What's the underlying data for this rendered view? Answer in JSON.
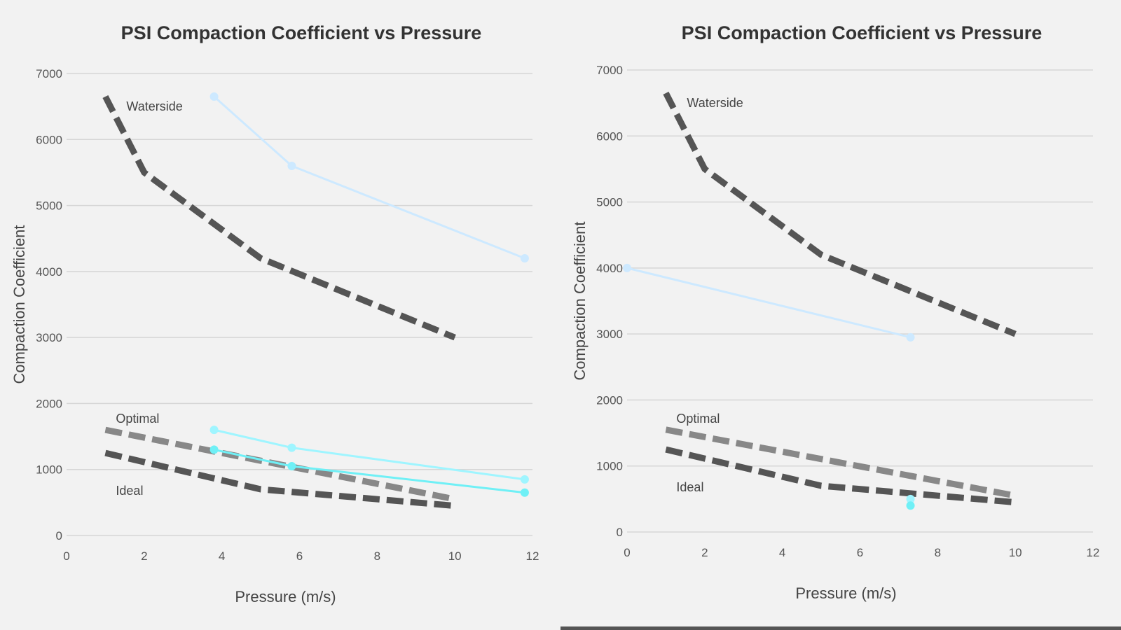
{
  "chart_data": [
    {
      "type": "line",
      "title": "PSI Compaction Coefficient vs Pressure",
      "xlabel": "Pressure (m/s)",
      "ylabel": "Compaction Coefficient",
      "xlim": [
        0,
        12
      ],
      "ylim": [
        0,
        7000
      ],
      "xticks": [
        0,
        2,
        4,
        6,
        8,
        10,
        12
      ],
      "yticks": [
        0,
        1000,
        2000,
        3000,
        4000,
        5000,
        6000,
        7000
      ],
      "grid": true,
      "series": [
        {
          "name": "Waterside",
          "style": "dashed",
          "color": "#555555",
          "x": [
            1,
            2,
            5,
            10
          ],
          "y": [
            6650,
            5500,
            4200,
            3000
          ]
        },
        {
          "style": "solid",
          "color": "#cde9ff",
          "x": [
            3.8,
            5.8,
            11.8
          ],
          "y": [
            6650,
            5600,
            4200
          ]
        },
        {
          "name": "Optimal",
          "style": "dashed",
          "color": "#888888",
          "x": [
            1,
            10
          ],
          "y": [
            1600,
            550
          ]
        },
        {
          "name": "Ideal",
          "style": "dashed",
          "color": "#555555",
          "x": [
            1,
            5,
            10
          ],
          "y": [
            1250,
            700,
            450
          ]
        },
        {
          "style": "solid",
          "color": "#9ff5ff",
          "x": [
            3.8,
            5.8,
            11.8
          ],
          "y": [
            1600,
            1330,
            850
          ]
        },
        {
          "style": "solid",
          "color": "#6ff0f6",
          "x": [
            3.8,
            5.8,
            11.8
          ],
          "y": [
            1300,
            1050,
            650
          ]
        }
      ]
    },
    {
      "type": "line",
      "title": "PSI Compaction Coefficient vs Pressure",
      "xlabel": "Pressure (m/s)",
      "ylabel": "Compaction Coefficient",
      "xlim": [
        0,
        12
      ],
      "ylim": [
        0,
        7000
      ],
      "xticks": [
        0,
        2,
        4,
        6,
        8,
        10,
        12
      ],
      "yticks": [
        0,
        1000,
        2000,
        3000,
        4000,
        5000,
        6000,
        7000
      ],
      "grid": true,
      "series": [
        {
          "name": "Waterside",
          "style": "dashed",
          "color": "#555555",
          "x": [
            1,
            2,
            5,
            10
          ],
          "y": [
            6650,
            5500,
            4200,
            3000
          ]
        },
        {
          "style": "solid",
          "color": "#cde9ff",
          "x": [
            0,
            7.3
          ],
          "y": [
            4000,
            2950
          ]
        },
        {
          "name": "Optimal",
          "style": "dashed",
          "color": "#888888",
          "x": [
            1,
            10
          ],
          "y": [
            1550,
            550
          ]
        },
        {
          "name": "Ideal",
          "style": "dashed",
          "color": "#555555",
          "x": [
            1,
            5,
            10
          ],
          "y": [
            1250,
            700,
            450
          ]
        },
        {
          "style": "solid",
          "color": "#9ff5ff",
          "x": [
            7.3
          ],
          "y": [
            500
          ]
        },
        {
          "style": "solid",
          "color": "#6ff0f6",
          "x": [
            7.3
          ],
          "y": [
            400
          ]
        }
      ]
    }
  ]
}
